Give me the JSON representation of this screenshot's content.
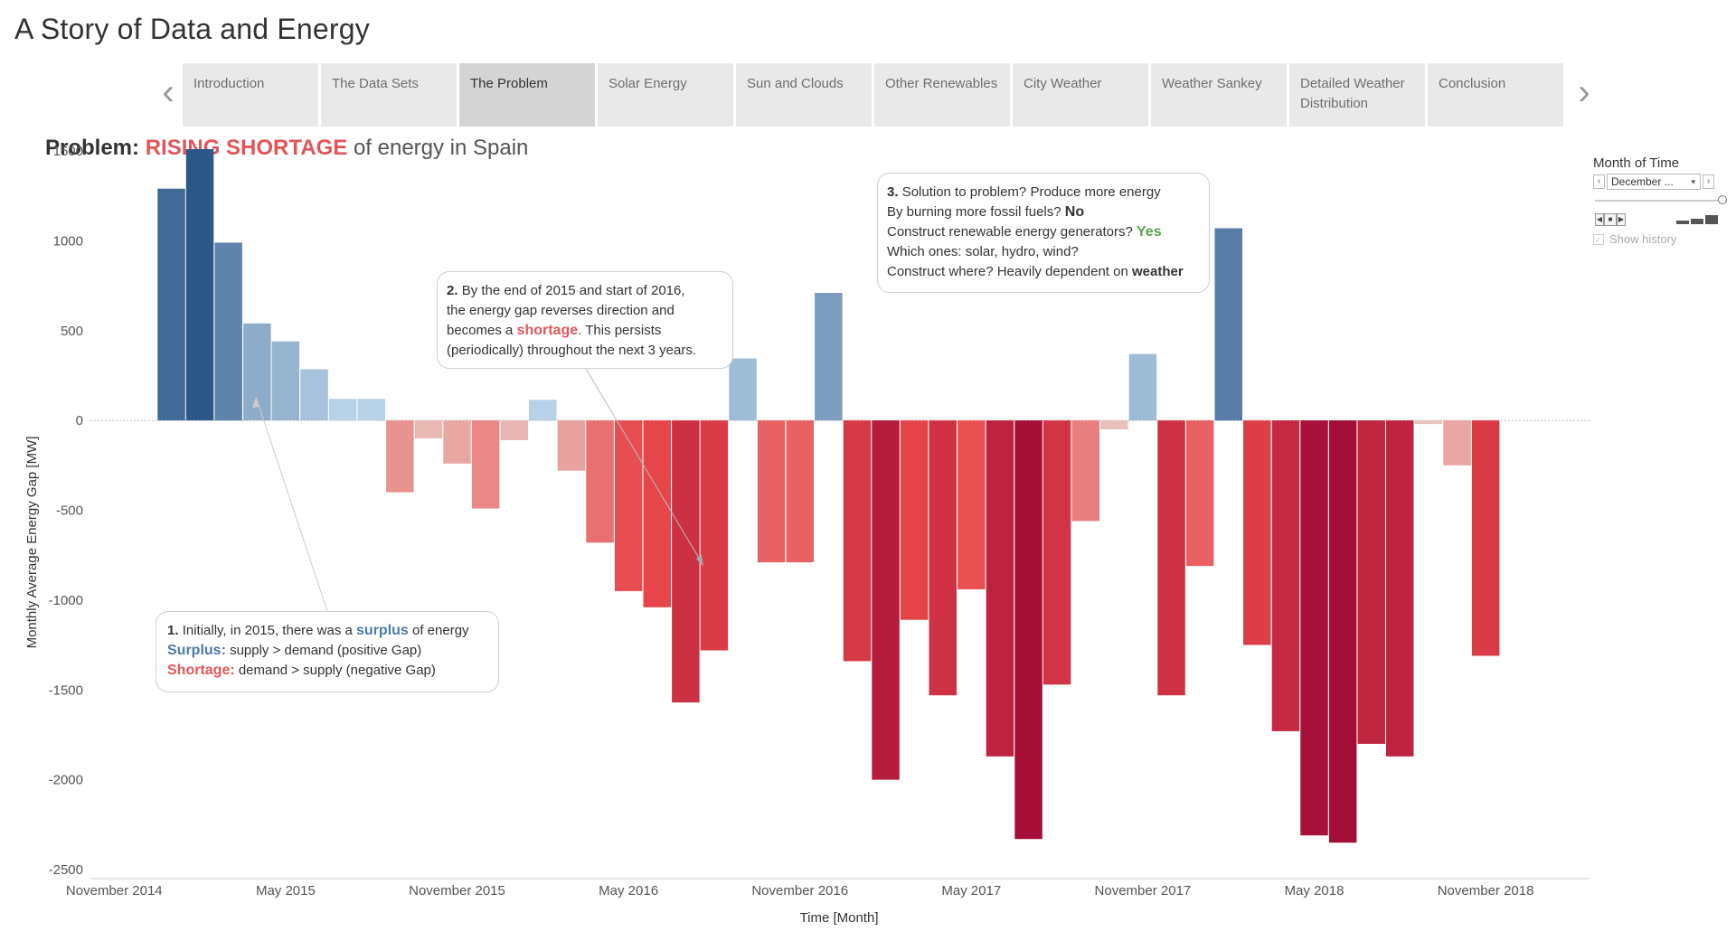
{
  "story": {
    "title": "A Story of Data and Energy",
    "tabs": [
      {
        "lines": [
          "Introduction"
        ],
        "active": false
      },
      {
        "lines": [
          "The Data Sets"
        ],
        "active": false
      },
      {
        "lines": [
          "The Problem"
        ],
        "active": true
      },
      {
        "lines": [
          "Solar Energy"
        ],
        "active": false
      },
      {
        "lines": [
          "Sun and Clouds"
        ],
        "active": false
      },
      {
        "lines": [
          "Other Renewables"
        ],
        "active": false
      },
      {
        "lines": [
          "City Weather"
        ],
        "active": false
      },
      {
        "lines": [
          "Weather Sankey"
        ],
        "active": false
      },
      {
        "lines": [
          "Detailed Weather",
          "Distribution"
        ],
        "active": false
      },
      {
        "lines": [
          "Conclusion"
        ],
        "active": false
      }
    ],
    "prev_icon": "chevron-left-icon",
    "next_icon": "chevron-right-icon",
    "prev_glyph": "‹",
    "next_glyph": "›"
  },
  "sheet": {
    "title_prefix": "Problem:",
    "title_highlight": "RISING SHORTAGE",
    "title_suffix": "of energy in Spain"
  },
  "filter": {
    "label": "Month of Time",
    "selected": "December ...",
    "prev_glyph": "‹",
    "next_glyph": "›",
    "dropdown_glyph": "▾",
    "show_history_label": "Show history",
    "show_history_checked": true
  },
  "callouts": {
    "c1": {
      "num": "1.",
      "line1_a": "Initially, in 2015, there was a",
      "line1_hl": "surplus",
      "line1_b": "of energy",
      "surplus_label": "Surplus:",
      "surplus_text": "supply > demand (positive Gap)",
      "shortage_label": "Shortage:",
      "shortage_text": "demand > supply (negative Gap)"
    },
    "c2": {
      "num": "2.",
      "line1": "By the end of 2015 and start of 2016,",
      "line2": "the energy gap reverses direction and",
      "line3_a": "becomes a",
      "line3_hl": "shortage",
      "line3_b": ". This persists",
      "line4": "(periodically) throughout the next 3 years."
    },
    "c3": {
      "num": "3.",
      "line1": "Solution to problem? Produce more energy",
      "line2_a": "By burning more fossil fuels?",
      "line2_b": "No",
      "line3_a": "Construct renewable energy generators?",
      "line3_b": "Yes",
      "line4": "Which ones: solar, hydro, wind?",
      "line5_a": "Construct where? Heavily dependent on",
      "line5_b": "weather"
    }
  },
  "colors": {
    "pos_light": "#b9d3e8",
    "pos_dark": "#2c5789",
    "neg_light": "#e9c5c0",
    "neg_mid": "#e8484b",
    "neg_dark": "#a50e38",
    "title_red": "#e15759"
  },
  "chart_data": {
    "type": "bar",
    "title": "Problem: RISING SHORTAGE of energy in Spain",
    "xlabel": "Time [Month]",
    "ylabel": "Monthly Average Energy Gap [MW]",
    "ylim": [
      -2500,
      1500
    ],
    "yticks": [
      1500,
      1000,
      500,
      0,
      -500,
      -1000,
      -1500,
      -2000,
      -2500
    ],
    "x_tick_labels": [
      "November 2014",
      "May 2015",
      "November 2015",
      "May 2016",
      "November 2016",
      "May 2017",
      "November 2017",
      "May 2018",
      "November 2018"
    ],
    "x_tick_months": [
      "2014-11",
      "2015-05",
      "2015-11",
      "2016-05",
      "2016-11",
      "2017-05",
      "2017-11",
      "2018-05",
      "2018-11"
    ],
    "first_month": "2015-01",
    "months": [
      "2015-01",
      "2015-02",
      "2015-03",
      "2015-04",
      "2015-05",
      "2015-06",
      "2015-07",
      "2015-08",
      "2015-09",
      "2015-10",
      "2015-11",
      "2015-12",
      "2016-01",
      "2016-02",
      "2016-03",
      "2016-04",
      "2016-05",
      "2016-06",
      "2016-07",
      "2016-08",
      "2016-09",
      "2016-10",
      "2016-11",
      "2016-12",
      "2017-01",
      "2017-02",
      "2017-03",
      "2017-04",
      "2017-05",
      "2017-06",
      "2017-07",
      "2017-08",
      "2017-09",
      "2017-10",
      "2017-11",
      "2017-12",
      "2018-01",
      "2018-02",
      "2018-03",
      "2018-04",
      "2018-05",
      "2018-06",
      "2018-07",
      "2018-08",
      "2018-09",
      "2018-10",
      "2018-11",
      "2018-12"
    ],
    "values": [
      1290,
      1510,
      990,
      540,
      440,
      285,
      120,
      120,
      -400,
      -100,
      -240,
      -490,
      -110,
      115,
      -280,
      -680,
      -950,
      -1040,
      -1570,
      -1280,
      345,
      -790,
      -790,
      710,
      -1340,
      -2000,
      -1110,
      -1530,
      -940,
      -1870,
      -2330,
      -1470,
      -560,
      -50,
      370,
      -1530,
      -810,
      1070,
      -1250,
      -1730,
      -2310,
      -2350,
      -1800,
      -1870,
      -20,
      -250,
      -1310,
      null
    ],
    "grid": false,
    "legend": "none"
  }
}
